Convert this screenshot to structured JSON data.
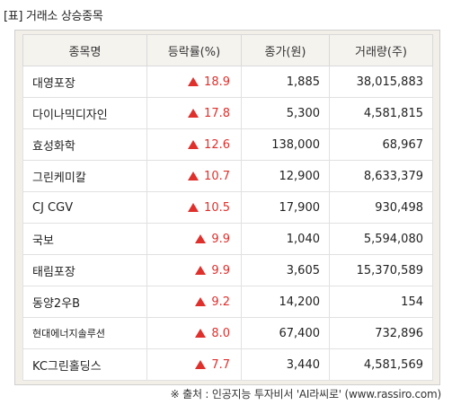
{
  "title": "[표] 거래소 상승종목",
  "table": {
    "headers": [
      "종목명",
      "등락률(%)",
      "종가(원)",
      "거래량(주)"
    ],
    "rows": [
      {
        "name": "대영포장",
        "rate": "18.9",
        "close": "1,885",
        "volume": "38,015,883"
      },
      {
        "name": "다이나믹디자인",
        "rate": "17.8",
        "close": "5,300",
        "volume": "4,581,815"
      },
      {
        "name": "효성화학",
        "rate": "12.6",
        "close": "138,000",
        "volume": "68,967"
      },
      {
        "name": "그린케미칼",
        "rate": "10.7",
        "close": "12,900",
        "volume": "8,633,379"
      },
      {
        "name": "CJ CGV",
        "rate": "10.5",
        "close": "17,900",
        "volume": "930,498"
      },
      {
        "name": "국보",
        "rate": "9.9",
        "close": "1,040",
        "volume": "5,594,080"
      },
      {
        "name": "태림포장",
        "rate": "9.9",
        "close": "3,605",
        "volume": "15,370,589"
      },
      {
        "name": "동양2우B",
        "rate": "9.2",
        "close": "14,200",
        "volume": "154"
      },
      {
        "name": "현대에너지솔루션",
        "rate": "8.0",
        "close": "67,400",
        "volume": "732,896"
      },
      {
        "name": "KC그린홀딩스",
        "rate": "7.7",
        "close": "3,440",
        "volume": "4,581,569"
      }
    ]
  },
  "up_icon": "up-triangle-icon",
  "up_color": "#e0302c",
  "source": "※ 출처 : 인공지능 투자비서 'AI라씨로' (www.rassiro.com)"
}
